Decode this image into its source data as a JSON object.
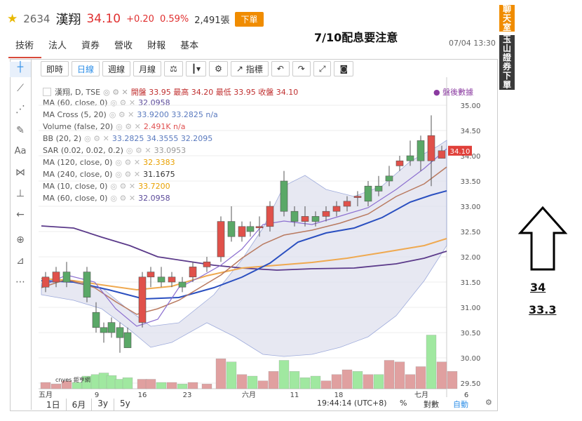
{
  "header": {
    "code": "2634",
    "name": "漢翔",
    "price": "34.10",
    "change": "+0.20",
    "change_pct": "0.59%",
    "volume": "2,491張",
    "order_label": "下單"
  },
  "tabs": [
    "技術",
    "法人",
    "資券",
    "營收",
    "財報",
    "基本"
  ],
  "notice": "7/10配息要注意",
  "datetime": "07/04 13:30",
  "side_buttons": [
    "聊天室",
    "玉山證券下單"
  ],
  "toolbar": {
    "items": [
      "即時",
      "日線",
      "週線",
      "月線",
      "指標"
    ],
    "active": "日線"
  },
  "legend": {
    "title": "漢翔, D, TSE",
    "ohlc": "開盤 33.95 最高 34.20 最低 33.95 收盤 34.10",
    "after_hours": "盤後數據",
    "rows": [
      {
        "label": "MA (60, close, 0)",
        "values": "32.0958",
        "color": "#5b4a9a"
      },
      {
        "label": "MA Cross (5, 20)",
        "values": "33.9200 33.2825 n/a",
        "color": "#5a7abf"
      },
      {
        "label": "Volume (false, 20)",
        "values": "2.491K n/a",
        "color": "#e05050"
      },
      {
        "label": "BB (20, 2)",
        "values": "33.2825 34.3555 32.2095",
        "color": "#5a7abf"
      },
      {
        "label": "SAR (0.02, 0.02, 0.2)",
        "values": "33.0953",
        "color": "#999"
      },
      {
        "label": "MA (120, close, 0)",
        "values": "32.3383",
        "color": "#e8a000"
      },
      {
        "label": "MA (240, close, 0)",
        "values": "31.1675",
        "color": "#333"
      },
      {
        "label": "MA (10, close, 0)",
        "values": "33.7200",
        "color": "#e8a000"
      },
      {
        "label": "MA (60, close, 0)",
        "values": "32.0958",
        "color": "#5b4a9a"
      }
    ]
  },
  "last_price_tag": "34.10",
  "y_axis": [
    "35.00",
    "34.50",
    "34.00",
    "33.50",
    "33.00",
    "32.50",
    "32.00",
    "31.50",
    "31.00",
    "30.50",
    "30.00",
    "29.50"
  ],
  "x_axis": [
    "五月",
    "9",
    "16",
    "23",
    "六月",
    "11",
    "18",
    "七月",
    "6"
  ],
  "bottom_bar": {
    "ranges": [
      "1日",
      "6月",
      "3y",
      "5y"
    ],
    "time": "19:44:14 (UTC+8)",
    "pct": "%",
    "log": "對數",
    "auto": "自動"
  },
  "watermark": "cnyes 鉅亨網",
  "annotations": {
    "line1": "34",
    "line2": "33.3"
  },
  "colors": {
    "up": "#e0514a",
    "down": "#5aa867",
    "vol_up": "#e0a0a0",
    "vol_down": "#a0e8a0"
  }
}
